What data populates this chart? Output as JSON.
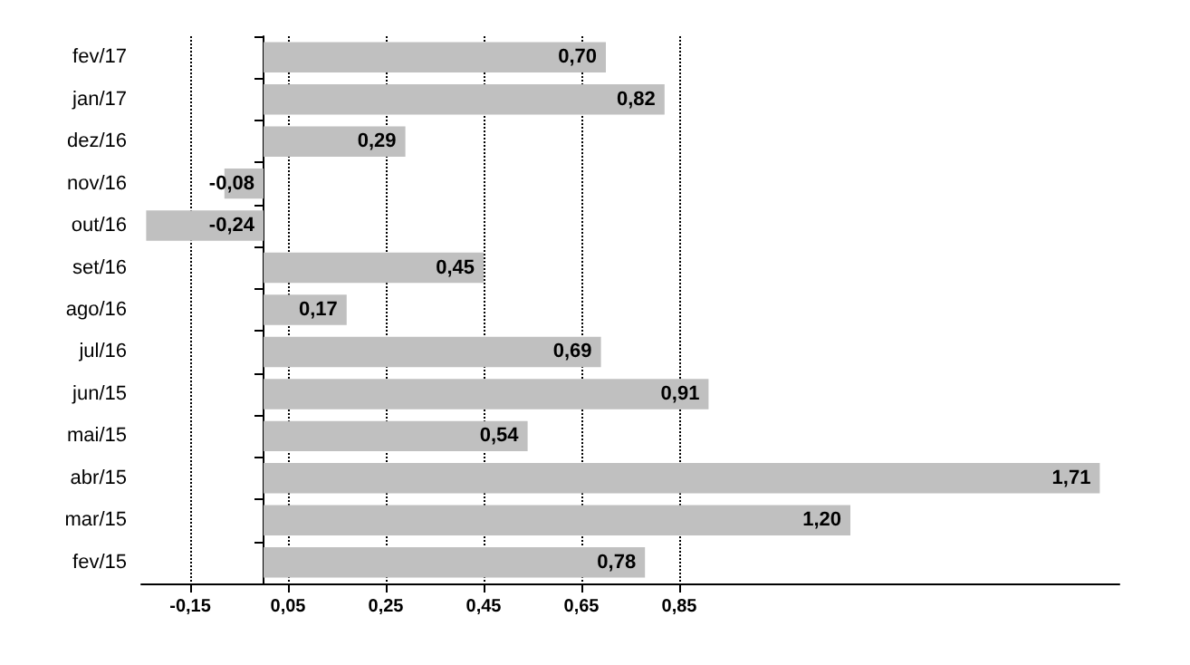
{
  "chart_data": {
    "type": "bar",
    "orientation": "horizontal",
    "categories": [
      "fev/17",
      "jan/17",
      "dez/16",
      "nov/16",
      "out/16",
      "set/16",
      "ago/16",
      "jul/16",
      "jun/15",
      "mai/15",
      "abr/15",
      "mar/15",
      "fev/15"
    ],
    "values": [
      0.7,
      0.82,
      0.29,
      -0.08,
      -0.24,
      0.45,
      0.17,
      0.69,
      0.91,
      0.54,
      1.71,
      1.2,
      0.78
    ],
    "value_labels": [
      "0,70",
      "0,82",
      "0,29",
      "-0,08",
      "-0,24",
      "0,45",
      "0,17",
      "0,69",
      "0,91",
      "0,54",
      "1,71",
      "1,20",
      "0,78"
    ],
    "color": "#c0c0c0",
    "xlim": [
      -0.25,
      1.75
    ],
    "xticks": [
      {
        "value": -0.15,
        "label": "-0,15"
      },
      {
        "value": 0.05,
        "label": "0,05"
      },
      {
        "value": 0.25,
        "label": "0,25"
      },
      {
        "value": 0.45,
        "label": "0,45"
      },
      {
        "value": 0.65,
        "label": "0,65"
      },
      {
        "value": 0.85,
        "label": "0,85"
      }
    ],
    "grid": "x"
  }
}
